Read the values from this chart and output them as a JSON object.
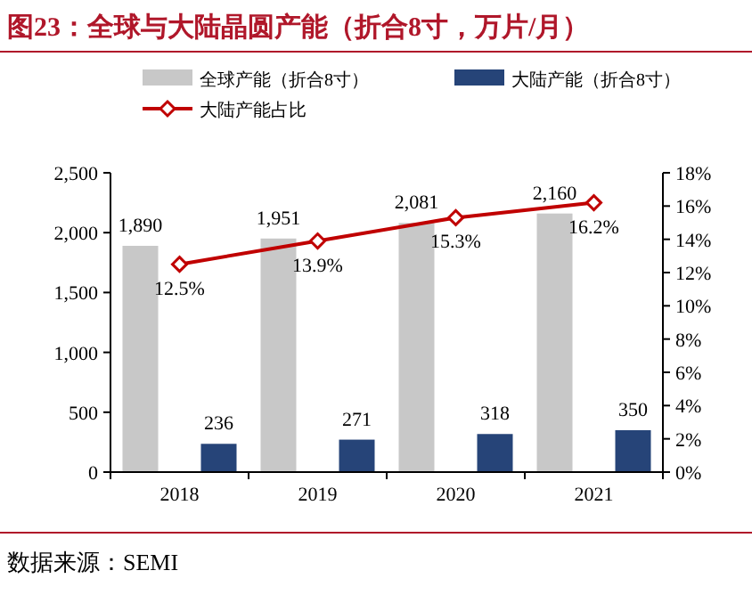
{
  "chart_data": {
    "type": "bar",
    "title": "图23：全球与大陆晶圆产能（折合8寸，万片/月）",
    "categories": [
      "2018",
      "2019",
      "2020",
      "2021"
    ],
    "series": [
      {
        "name": "全球产能（折合8寸）",
        "color": "#c8c8c8",
        "values": [
          1890,
          1951,
          2081,
          2160
        ],
        "value_labels": [
          "1,890",
          "1,951",
          "2,081",
          "2,160"
        ]
      },
      {
        "name": "大陆产能（折合8寸）",
        "color": "#264478",
        "values": [
          236,
          271,
          318,
          350
        ],
        "value_labels": [
          "236",
          "271",
          "318",
          "350"
        ]
      },
      {
        "name": "大陆产能占比",
        "type": "line",
        "axis": "y2",
        "color": "#c00000",
        "marker": "diamond",
        "values": [
          12.5,
          13.9,
          15.3,
          16.2
        ],
        "value_labels": [
          "12.5%",
          "13.9%",
          "15.3%",
          "16.2%"
        ]
      }
    ],
    "ylim": [
      0,
      2500
    ],
    "yticks": [
      0,
      {
        "value": 500,
        "label": "500"
      },
      {
        "value": 1000,
        "label": "1,000"
      },
      {
        "value": 1500,
        "label": "1,500"
      },
      {
        "value": 2000,
        "label": "2,000"
      },
      {
        "value": 2500,
        "label": "2,500"
      }
    ],
    "y2lim": [
      0,
      18
    ],
    "y2ticks": [
      {
        "value": 0,
        "label": "0%"
      },
      {
        "value": 2,
        "label": "2%"
      },
      {
        "value": 4,
        "label": "4%"
      },
      {
        "value": 6,
        "label": "6%"
      },
      {
        "value": 8,
        "label": "8%"
      },
      {
        "value": 10,
        "label": "10%"
      },
      {
        "value": 12,
        "label": "12%"
      },
      {
        "value": 14,
        "label": "14%"
      },
      {
        "value": 16,
        "label": "16%"
      },
      {
        "value": 18,
        "label": "18%"
      }
    ],
    "legend": "top left",
    "grid": false,
    "annotations": [
      "数据来源：SEMI"
    ]
  }
}
